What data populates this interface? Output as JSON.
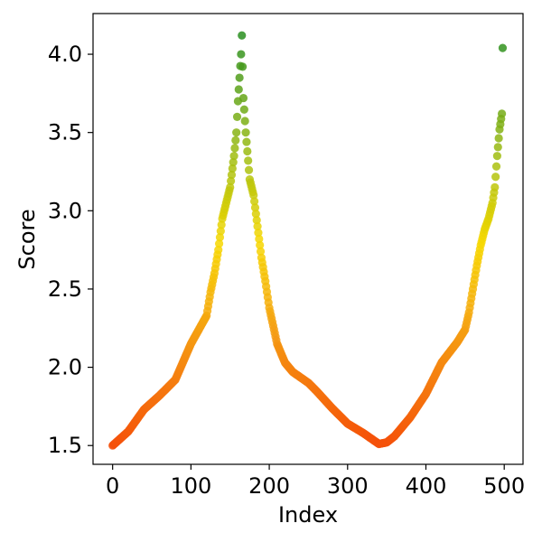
{
  "chart_data": {
    "type": "scatter",
    "title": "",
    "xlabel": "Index",
    "ylabel": "Score",
    "xlim": [
      -25,
      524
    ],
    "ylim": [
      1.38,
      4.26
    ],
    "xticks": [
      0,
      100,
      200,
      300,
      400,
      500
    ],
    "xtick_labels": [
      "0",
      "100",
      "200",
      "300",
      "400",
      "500"
    ],
    "yticks": [
      1.5,
      2.0,
      2.5,
      3.0,
      3.5,
      4.0
    ],
    "ytick_labels": [
      "1.5",
      "2.0",
      "2.5",
      "3.0",
      "3.5",
      "4.0"
    ],
    "grid": false,
    "legend": "none",
    "color_scale": {
      "description": "points colored by score",
      "stops": [
        {
          "value": 1.5,
          "color": "#f4500a"
        },
        {
          "value": 2.2,
          "color": "#f59a12"
        },
        {
          "value": 2.8,
          "color": "#f7d800"
        },
        {
          "value": 3.3,
          "color": "#a8c010"
        },
        {
          "value": 4.1,
          "color": "#2a8f20"
        }
      ]
    },
    "anchors": [
      [
        0,
        1.5
      ],
      [
        20,
        1.59
      ],
      [
        40,
        1.73
      ],
      [
        60,
        1.82
      ],
      [
        80,
        1.92
      ],
      [
        100,
        2.15
      ],
      [
        110,
        2.24
      ],
      [
        120,
        2.33
      ],
      [
        125,
        2.48
      ],
      [
        130,
        2.6
      ],
      [
        135,
        2.75
      ],
      [
        140,
        2.95
      ],
      [
        145,
        3.05
      ],
      [
        150,
        3.15
      ],
      [
        155,
        3.35
      ],
      [
        158,
        3.5
      ],
      [
        160,
        3.7
      ],
      [
        162,
        3.85
      ],
      [
        164,
        4.0
      ],
      [
        165,
        4.12
      ],
      [
        167,
        3.72
      ],
      [
        170,
        3.5
      ],
      [
        175,
        3.2
      ],
      [
        180,
        3.1
      ],
      [
        185,
        2.9
      ],
      [
        190,
        2.7
      ],
      [
        195,
        2.55
      ],
      [
        200,
        2.38
      ],
      [
        210,
        2.15
      ],
      [
        220,
        2.03
      ],
      [
        230,
        1.97
      ],
      [
        250,
        1.9
      ],
      [
        260,
        1.85
      ],
      [
        280,
        1.74
      ],
      [
        300,
        1.64
      ],
      [
        320,
        1.58
      ],
      [
        340,
        1.51
      ],
      [
        350,
        1.52
      ],
      [
        360,
        1.56
      ],
      [
        380,
        1.68
      ],
      [
        400,
        1.83
      ],
      [
        420,
        2.03
      ],
      [
        440,
        2.16
      ],
      [
        450,
        2.24
      ],
      [
        455,
        2.35
      ],
      [
        460,
        2.5
      ],
      [
        465,
        2.65
      ],
      [
        470,
        2.78
      ],
      [
        475,
        2.88
      ],
      [
        480,
        2.95
      ],
      [
        485,
        3.05
      ],
      [
        488,
        3.15
      ],
      [
        491,
        3.35
      ],
      [
        494,
        3.52
      ],
      [
        497,
        3.62
      ],
      [
        498,
        4.04
      ]
    ],
    "x_range": [
      0,
      498
    ],
    "n_points": 499
  }
}
